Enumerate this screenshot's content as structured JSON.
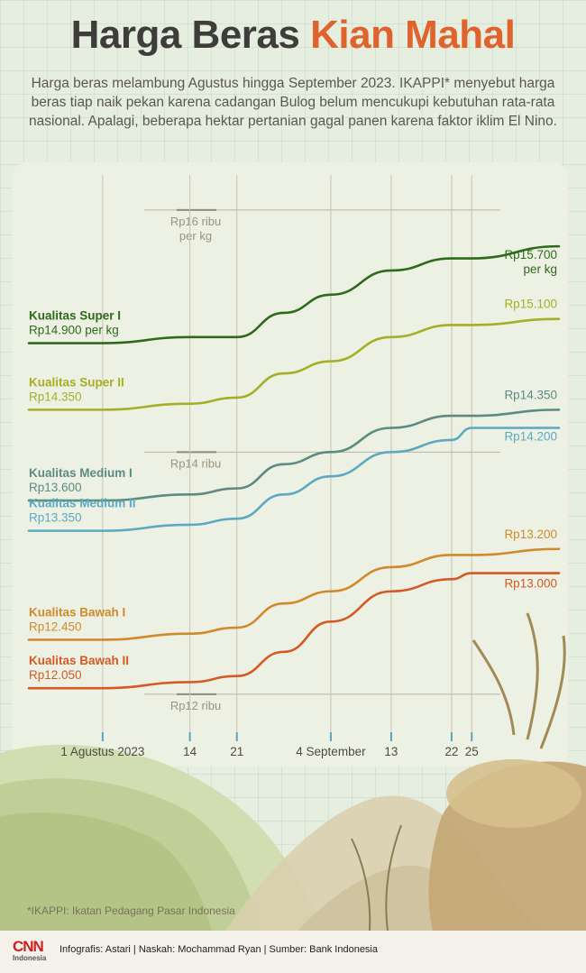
{
  "header": {
    "title_part1": "Harga Beras",
    "title_part2": "Kian Mahal",
    "subtitle": "Harga beras melambung Agustus hingga September 2023. IKAPPI* menyebut harga beras tiap naik pekan karena cadangan Bulog belum mencukupi kebutuhan rata-rata nasional. Apalagi, beberapa hektar pertanian gagal panen karena faktor iklim El Nino."
  },
  "chart_data": {
    "type": "line",
    "title": "Harga Beras Kian Mahal",
    "x_unit": "day",
    "x_ticks": [
      {
        "x": "2023-08-01",
        "label": "1 Agustus 2023"
      },
      {
        "x": "2023-08-14",
        "label": "14"
      },
      {
        "x": "2023-08-21",
        "label": "21"
      },
      {
        "x": "2023-09-04",
        "label": "4 September"
      },
      {
        "x": "2023-09-13",
        "label": "13"
      },
      {
        "x": "2023-09-22",
        "label": "22"
      },
      {
        "x": "2023-09-25",
        "label": "25"
      }
    ],
    "xlim": [
      "2023-07-21",
      "2023-10-08"
    ],
    "ylim": [
      11850,
      16200
    ],
    "reference_lines": [
      {
        "y": 16000,
        "label_line1": "Rp16 ribu",
        "label_line2": "per kg"
      },
      {
        "y": 14000,
        "label_line1": "Rp14 ribu",
        "label_line2": ""
      },
      {
        "y": 12000,
        "label_line1": "Rp12 ribu",
        "label_line2": ""
      }
    ],
    "series": [
      {
        "name": "Kualitas Super I",
        "color": "#2f6a1c",
        "start_label": "Rp14.900 per kg",
        "end_label_line1": "Rp15.700",
        "end_label_line2": "per kg",
        "values": [
          14900,
          14900,
          14950,
          14950,
          15150,
          15300,
          15500,
          15600,
          15600,
          15700
        ]
      },
      {
        "name": "Kualitas Super II",
        "color": "#a5ae24",
        "start_label": "Rp14.350",
        "end_label_line1": "Rp15.100",
        "end_label_line2": "",
        "values": [
          14350,
          14350,
          14400,
          14450,
          14650,
          14750,
          14950,
          15050,
          15050,
          15100
        ]
      },
      {
        "name": "Kualitas Medium I",
        "color": "#5d8a82",
        "start_label": "Rp13.600",
        "end_label_line1": "Rp14.350",
        "end_label_line2": "",
        "values": [
          13600,
          13600,
          13650,
          13700,
          13900,
          14000,
          14200,
          14300,
          14300,
          14350
        ]
      },
      {
        "name": "Kualitas Medium II",
        "color": "#5ca9c1",
        "start_label": "Rp13.350",
        "end_label_line1": "Rp14.200",
        "end_label_line2": "",
        "values": [
          13350,
          13350,
          13400,
          13450,
          13650,
          13800,
          14000,
          14100,
          14200,
          14200
        ]
      },
      {
        "name": "Kualitas Bawah I",
        "color": "#d08a2c",
        "start_label": "Rp12.450",
        "end_label_line1": "Rp13.200",
        "end_label_line2": "",
        "values": [
          12450,
          12450,
          12500,
          12550,
          12750,
          12850,
          13050,
          13150,
          13150,
          13200
        ]
      },
      {
        "name": "Kualitas Bawah II",
        "color": "#d35a24",
        "start_label": "Rp12.050",
        "end_label_line1": "Rp13.000",
        "end_label_line2": "",
        "values": [
          12050,
          12050,
          12100,
          12150,
          12350,
          12600,
          12850,
          12950,
          13000,
          13000
        ]
      }
    ],
    "x": [
      "2023-07-21",
      "2023-08-01",
      "2023-08-14",
      "2023-08-21",
      "2023-08-28",
      "2023-09-04",
      "2023-09-13",
      "2023-09-22",
      "2023-09-25",
      "2023-10-08"
    ],
    "grid": false
  },
  "footer": {
    "logo_main": "CNN",
    "logo_sub": "Indonesia",
    "credits": "Infografis: Astari | Naskah: Mochammad Ryan | Sumber: Bank Indonesia",
    "note": "*IKAPPI: Ikatan Pedagang Pasar Indonesia"
  }
}
